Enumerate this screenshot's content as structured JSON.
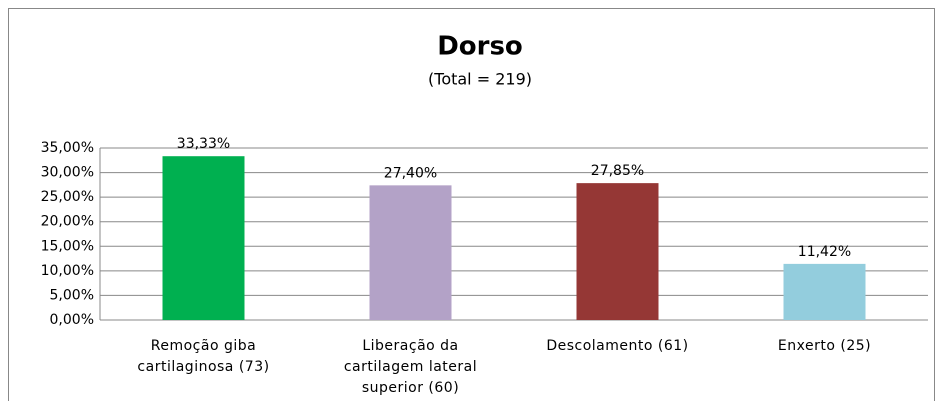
{
  "chart_data": {
    "type": "bar",
    "title": "Dorso",
    "subtitle": "(Total = 219)",
    "categories": [
      "Remoção giba cartilaginosa (73)",
      "Liberação da cartilagem lateral superior (60)",
      "Descolamento (61)",
      "Enxerto (25)"
    ],
    "values": [
      33.33,
      27.4,
      27.85,
      11.42
    ],
    "value_labels": [
      "33,33%",
      "27,40%",
      "27,85%",
      "11,42%"
    ],
    "colors": [
      "#00b050",
      "#b3a2c7",
      "#953735",
      "#93cddd"
    ],
    "ylim": [
      0,
      35
    ],
    "yticks": [
      {
        "value": 0,
        "label": "0,00%"
      },
      {
        "value": 5,
        "label": "5,00%"
      },
      {
        "value": 10,
        "label": "10,00%"
      },
      {
        "value": 15,
        "label": "15,00%"
      },
      {
        "value": 20,
        "label": "20,00%"
      },
      {
        "value": 25,
        "label": "25,00%"
      },
      {
        "value": 30,
        "label": "30,00%"
      },
      {
        "value": 35,
        "label": "35,00%"
      }
    ],
    "grid": true
  }
}
